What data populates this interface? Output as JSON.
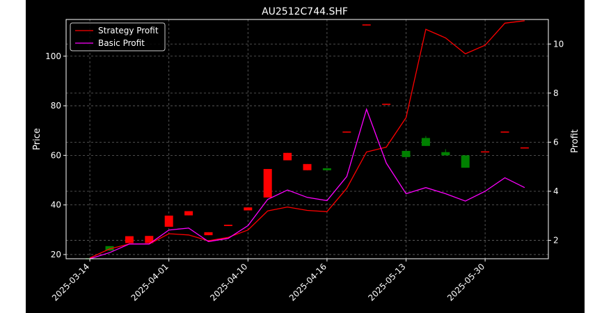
{
  "chart_data": {
    "type": "candlestick+line",
    "title": "AU2512C744.SHF",
    "ylabel_left": "Price",
    "ylabel_right": "Profit",
    "xlabel": "",
    "grid": true,
    "legend_position": "top-left",
    "background": "#000000",
    "x_tick_labels": [
      "2025-03-14",
      "2025-04-01",
      "2025-04-10",
      "2025-04-16",
      "2025-05-13",
      "2025-05-30"
    ],
    "x_tick_index": [
      0,
      4,
      8,
      12,
      16,
      20
    ],
    "y_left_ticks": [
      20,
      40,
      60,
      80,
      100
    ],
    "y_left_range": [
      18.3,
      114.8
    ],
    "y_right_ticks": [
      2,
      4,
      6,
      8,
      10
    ],
    "y_right_range": [
      1.25,
      11.0
    ],
    "candles": [
      {
        "i": 0,
        "open": 18.5,
        "close": 18.5,
        "high": 18.6,
        "low": 18.4
      },
      {
        "i": 1,
        "open": 21.6,
        "close": 23.4,
        "high": 23.4,
        "low": 21.6
      },
      {
        "i": 2,
        "open": 27.4,
        "close": 24.6,
        "high": 27.4,
        "low": 24.6
      },
      {
        "i": 3,
        "open": 27.5,
        "close": 24.6,
        "high": 27.5,
        "low": 24.6
      },
      {
        "i": 4,
        "open": 35.7,
        "close": 31.2,
        "high": 35.7,
        "low": 31.2
      },
      {
        "i": 5,
        "open": 37.5,
        "close": 35.8,
        "high": 37.5,
        "low": 35.8
      },
      {
        "i": 6,
        "open": 29.0,
        "close": 27.8,
        "high": 29.0,
        "low": 27.8
      },
      {
        "i": 7,
        "open": 32.0,
        "close": 31.5,
        "high": 32.0,
        "low": 31.5
      },
      {
        "i": 8,
        "open": 39.0,
        "close": 37.8,
        "high": 39.0,
        "low": 37.8
      },
      {
        "i": 9,
        "open": 54.5,
        "close": 43.0,
        "high": 54.5,
        "low": 43.0
      },
      {
        "i": 10,
        "open": 61.0,
        "close": 58.0,
        "high": 61.0,
        "low": 58.0
      },
      {
        "i": 11,
        "open": 56.5,
        "close": 54.0,
        "high": 56.5,
        "low": 54.0
      },
      {
        "i": 12,
        "open": 54.0,
        "close": 54.8,
        "high": 54.8,
        "low": 54.0
      },
      {
        "i": 13,
        "open": 69.6,
        "close": 69.2,
        "high": 69.6,
        "low": 69.2
      },
      {
        "i": 14,
        "open": 112.8,
        "close": 112.4,
        "high": 112.8,
        "low": 112.4
      },
      {
        "i": 15,
        "open": 80.8,
        "close": 80.4,
        "high": 80.8,
        "low": 80.4
      },
      {
        "i": 16,
        "open": 59.3,
        "close": 61.8,
        "high": 61.8,
        "low": 59.3
      },
      {
        "i": 17,
        "open": 63.8,
        "close": 67.0,
        "high": 67.8,
        "low": 63.8
      },
      {
        "i": 18,
        "open": 60.0,
        "close": 61.3,
        "high": 62.5,
        "low": 60.0
      },
      {
        "i": 19,
        "open": 55.0,
        "close": 60.0,
        "high": 60.0,
        "low": 55.0
      },
      {
        "i": 20,
        "open": 61.6,
        "close": 61.3,
        "high": 61.6,
        "low": 61.3
      },
      {
        "i": 21,
        "open": 69.6,
        "close": 69.3,
        "high": 69.6,
        "low": 69.3
      },
      {
        "i": 22,
        "open": 63.2,
        "close": 62.9,
        "high": 63.2,
        "low": 62.9
      }
    ],
    "series": [
      {
        "name": "Strategy Profit",
        "color": "#ff0000",
        "axis": "right",
        "values": [
          1.28,
          1.65,
          1.85,
          1.85,
          2.27,
          2.22,
          1.98,
          2.12,
          2.42,
          3.2,
          3.36,
          3.22,
          3.17,
          4.12,
          5.6,
          5.8,
          7.0,
          10.6,
          10.25,
          9.6,
          9.95,
          10.85,
          10.95
        ]
      },
      {
        "name": "Basic Profit",
        "color": "#ff00ff",
        "axis": "right",
        "values": [
          1.25,
          1.5,
          1.85,
          1.85,
          2.42,
          2.5,
          1.95,
          2.08,
          2.6,
          3.67,
          4.05,
          3.75,
          3.62,
          4.6,
          7.34,
          5.15,
          3.9,
          4.15,
          3.9,
          3.6,
          4.0,
          4.55,
          4.15
        ]
      }
    ],
    "candle_colors": {
      "up": "#008000",
      "down": "#ff0000"
    },
    "grid_color": "#666666"
  }
}
